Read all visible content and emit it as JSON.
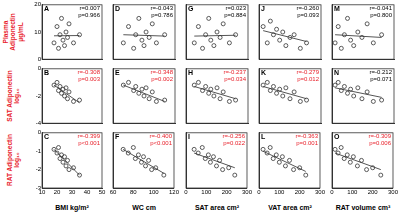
{
  "chart_data": [
    {
      "type": "scatter",
      "title": "A",
      "ylabel": "Plasma Adiponectin μg/mL",
      "x": [
        18,
        20,
        21,
        22,
        23,
        24,
        25,
        26,
        27,
        28,
        31,
        35
      ],
      "y": [
        6,
        12,
        4,
        9,
        15,
        7,
        5,
        10,
        8,
        13,
        6,
        9
      ],
      "fit": {
        "x": [
          18,
          35
        ],
        "y": [
          8.6,
          8.7
        ]
      },
      "annotations": [
        {
          "text": "r=0.007",
          "color": "#000000"
        },
        {
          "text": "p=0.966",
          "color": "#000000"
        }
      ],
      "xlim": [
        10,
        50
      ],
      "xticks": [
        10,
        20,
        30,
        40,
        50
      ],
      "ylim": [
        0,
        20
      ],
      "yticks": [
        0,
        10,
        20
      ],
      "grid": false,
      "tick_labels": "y",
      "marker": "circle",
      "color": "#333333"
    },
    {
      "type": "scatter",
      "title": "B",
      "ylabel": "SAT Adiponectin log₁₀",
      "x": [
        18,
        20,
        21,
        22,
        23,
        24,
        25,
        26,
        27,
        28,
        31,
        35
      ],
      "y": [
        -1.2,
        -1.0,
        -1.6,
        -1.3,
        -1.8,
        -1.5,
        -2.0,
        -1.4,
        -2.2,
        -1.7,
        -2.4,
        -2.3
      ],
      "fit": {
        "x": [
          18,
          35
        ],
        "y": [
          -1.2,
          -2.5
        ]
      },
      "annotations": [
        {
          "text": "r=-0.308",
          "color": "#e8202a"
        },
        {
          "text": "p=0.003",
          "color": "#e8202a"
        }
      ],
      "xlim": [
        10,
        50
      ],
      "xticks": [
        10,
        20,
        30,
        40,
        50
      ],
      "ylim": [
        -4,
        0
      ],
      "yticks": [
        -4,
        -2,
        0
      ],
      "grid": false,
      "tick_labels": "y",
      "marker": "circle",
      "color": "#333333"
    },
    {
      "type": "scatter",
      "title": "C",
      "ylabel": "RAT Adiponectin log₁₀",
      "xlabel": "BMI kg/m²",
      "x": [
        18,
        20,
        21,
        22,
        23,
        24,
        25,
        26,
        27,
        28,
        31,
        35
      ],
      "y": [
        -0.9,
        -1.1,
        -0.8,
        -1.4,
        -1.2,
        -1.6,
        -1.3,
        -1.8,
        -1.5,
        -2.0,
        -1.9,
        -2.3
      ],
      "fit": {
        "x": [
          18,
          35
        ],
        "y": [
          -0.9,
          -2.3
        ]
      },
      "annotations": [
        {
          "text": "r=-0.399",
          "color": "#e8202a"
        },
        {
          "text": "p<0.001",
          "color": "#e8202a"
        }
      ],
      "xlim": [
        10,
        50
      ],
      "xticks": [
        10,
        20,
        30,
        40,
        50
      ],
      "ylim": [
        -3,
        0
      ],
      "yticks": [
        -3,
        -2,
        -1,
        0
      ],
      "grid": false,
      "tick_labels": true,
      "marker": "circle",
      "color": "#333333"
    },
    {
      "type": "scatter",
      "title": "D",
      "x": [
        70,
        75,
        80,
        82,
        85,
        88,
        90,
        92,
        95,
        98,
        102,
        110
      ],
      "y": [
        6,
        12,
        4,
        9,
        15,
        7,
        5,
        10,
        8,
        13,
        6,
        9
      ],
      "fit": {
        "x": [
          70,
          110
        ],
        "y": [
          9,
          8.5
        ]
      },
      "annotations": [
        {
          "text": "r=-0.043",
          "color": "#000000"
        },
        {
          "text": "p=0.786",
          "color": "#000000"
        }
      ],
      "xlim": [
        60,
        120
      ],
      "xticks": [
        60,
        80,
        100,
        120
      ],
      "ylim": [
        0,
        20
      ],
      "yticks": [
        0,
        10,
        20
      ],
      "grid": false,
      "tick_labels": false,
      "marker": "circle",
      "color": "#333333"
    },
    {
      "type": "scatter",
      "title": "E",
      "x": [
        70,
        75,
        80,
        82,
        85,
        88,
        90,
        92,
        95,
        98,
        102,
        110
      ],
      "y": [
        -1.2,
        -1.0,
        -1.6,
        -1.3,
        -1.8,
        -1.5,
        -2.0,
        -1.4,
        -2.2,
        -1.7,
        -2.4,
        -2.3
      ],
      "fit": {
        "x": [
          70,
          110
        ],
        "y": [
          -1.2,
          -2.4
        ]
      },
      "annotations": [
        {
          "text": "r=-0.348",
          "color": "#e8202a"
        },
        {
          "text": "p=0.002",
          "color": "#e8202a"
        }
      ],
      "xlim": [
        60,
        120
      ],
      "xticks": [
        60,
        80,
        100,
        120
      ],
      "ylim": [
        -4,
        0
      ],
      "yticks": [
        -4,
        -2,
        0
      ],
      "grid": false,
      "tick_labels": false,
      "marker": "circle",
      "color": "#333333"
    },
    {
      "type": "scatter",
      "title": "F",
      "xlabel": "WC cm",
      "x": [
        70,
        75,
        80,
        82,
        85,
        88,
        90,
        92,
        95,
        98,
        102,
        110
      ],
      "y": [
        -0.9,
        -1.1,
        -0.8,
        -1.4,
        -1.2,
        -1.6,
        -1.3,
        -1.8,
        -1.5,
        -2.0,
        -1.9,
        -2.3
      ],
      "fit": {
        "x": [
          70,
          110
        ],
        "y": [
          -0.9,
          -2.2
        ]
      },
      "annotations": [
        {
          "text": "r=-0.400",
          "color": "#e8202a"
        },
        {
          "text": "p<0.001",
          "color": "#e8202a"
        }
      ],
      "xlim": [
        60,
        120
      ],
      "xticks": [
        60,
        80,
        100,
        120
      ],
      "ylim": [
        -3,
        0
      ],
      "yticks": [
        -3,
        -2,
        -1,
        0
      ],
      "grid": false,
      "tick_labels": "x",
      "marker": "circle",
      "color": "#333333"
    },
    {
      "type": "scatter",
      "title": "G",
      "x": [
        40,
        60,
        80,
        95,
        110,
        120,
        135,
        150,
        165,
        180,
        210,
        240
      ],
      "y": [
        6,
        12,
        4,
        9,
        15,
        7,
        5,
        10,
        8,
        13,
        6,
        9
      ],
      "fit": {
        "x": [
          40,
          240
        ],
        "y": [
          8.5,
          8.8
        ]
      },
      "annotations": [
        {
          "text": "r=0.023",
          "color": "#000000"
        },
        {
          "text": "p=0.884",
          "color": "#000000"
        }
      ],
      "xlim": [
        0,
        300
      ],
      "xticks": [
        0,
        100,
        200,
        300
      ],
      "ylim": [
        0,
        20
      ],
      "yticks": [
        0,
        10,
        20
      ],
      "grid": false,
      "tick_labels": false,
      "marker": "circle",
      "color": "#333333"
    },
    {
      "type": "scatter",
      "title": "H",
      "x": [
        40,
        60,
        80,
        95,
        110,
        120,
        135,
        150,
        165,
        180,
        210,
        240
      ],
      "y": [
        -1.2,
        -1.0,
        -1.6,
        -1.3,
        -1.8,
        -1.5,
        -2.0,
        -1.4,
        -2.2,
        -1.7,
        -2.4,
        -2.3
      ],
      "fit": {
        "x": [
          40,
          240
        ],
        "y": [
          -1.3,
          -2.2
        ]
      },
      "annotations": [
        {
          "text": "r=-0.237",
          "color": "#e8202a"
        },
        {
          "text": "p=0.034",
          "color": "#e8202a"
        }
      ],
      "xlim": [
        0,
        300
      ],
      "xticks": [
        0,
        100,
        200,
        300
      ],
      "ylim": [
        -4,
        0
      ],
      "yticks": [
        -4,
        -2,
        0
      ],
      "grid": false,
      "tick_labels": false,
      "marker": "circle",
      "color": "#333333"
    },
    {
      "type": "scatter",
      "title": "I",
      "xlabel": "SAT area cm²",
      "x": [
        40,
        60,
        80,
        95,
        110,
        120,
        135,
        150,
        165,
        180,
        210,
        240
      ],
      "y": [
        -0.9,
        -1.1,
        -0.8,
        -1.4,
        -1.2,
        -1.6,
        -1.3,
        -1.8,
        -1.5,
        -2.0,
        -1.9,
        -2.3
      ],
      "fit": {
        "x": [
          40,
          240
        ],
        "y": [
          -1.1,
          -1.9
        ]
      },
      "annotations": [
        {
          "text": "r=-0.256",
          "color": "#e8202a"
        },
        {
          "text": "p=0.022",
          "color": "#e8202a"
        }
      ],
      "xlim": [
        0,
        300
      ],
      "xticks": [
        0,
        100,
        200,
        300
      ],
      "ylim": [
        -3,
        0
      ],
      "yticks": [
        -3,
        -2,
        -1,
        0
      ],
      "grid": false,
      "tick_labels": "x",
      "marker": "circle",
      "color": "#333333"
    },
    {
      "type": "scatter",
      "title": "J",
      "x": [
        20,
        40,
        55,
        70,
        85,
        100,
        115,
        130,
        150,
        170,
        200,
        230
      ],
      "y": [
        12,
        6,
        14,
        9,
        11,
        7,
        10,
        5,
        8,
        9,
        4,
        6
      ],
      "fit": {
        "x": [
          20,
          230
        ],
        "y": [
          10.5,
          6.5
        ]
      },
      "annotations": [
        {
          "text": "r=-0.260",
          "color": "#000000"
        },
        {
          "text": "p=0.093",
          "color": "#000000"
        }
      ],
      "xlim": [
        0,
        300
      ],
      "xticks": [
        0,
        100,
        200,
        300
      ],
      "ylim": [
        0,
        20
      ],
      "yticks": [
        0,
        10,
        20
      ],
      "grid": false,
      "tick_labels": false,
      "marker": "circle",
      "color": "#333333"
    },
    {
      "type": "scatter",
      "title": "K",
      "x": [
        20,
        40,
        55,
        70,
        85,
        100,
        115,
        130,
        150,
        170,
        200,
        230
      ],
      "y": [
        -1.2,
        -1.0,
        -1.6,
        -1.3,
        -1.8,
        -1.5,
        -2.0,
        -1.4,
        -2.2,
        -1.7,
        -2.4,
        -2.3
      ],
      "fit": {
        "x": [
          20,
          230
        ],
        "y": [
          -1.3,
          -2.2
        ]
      },
      "annotations": [
        {
          "text": "r=-0.279",
          "color": "#e8202a"
        },
        {
          "text": "p=0.012",
          "color": "#e8202a"
        }
      ],
      "xlim": [
        0,
        300
      ],
      "xticks": [
        0,
        100,
        200,
        300
      ],
      "ylim": [
        -4,
        0
      ],
      "yticks": [
        -4,
        -2,
        0
      ],
      "grid": false,
      "tick_labels": false,
      "marker": "circle",
      "color": "#333333"
    },
    {
      "type": "scatter",
      "title": "L",
      "xlabel": "VAT area cm²",
      "x": [
        20,
        40,
        55,
        70,
        85,
        100,
        115,
        130,
        150,
        170,
        200,
        230
      ],
      "y": [
        -0.9,
        -1.1,
        -0.8,
        -1.4,
        -1.2,
        -1.6,
        -1.3,
        -1.8,
        -1.5,
        -2.0,
        -1.9,
        -2.3
      ],
      "fit": {
        "x": [
          20,
          230
        ],
        "y": [
          -1.0,
          -2.1
        ]
      },
      "annotations": [
        {
          "text": "r=-0.363",
          "color": "#e8202a"
        },
        {
          "text": "p=0.001",
          "color": "#e8202a"
        }
      ],
      "xlim": [
        0,
        300
      ],
      "xticks": [
        0,
        100,
        200,
        300
      ],
      "ylim": [
        -3,
        0
      ],
      "yticks": [
        -3,
        -2,
        -1,
        0
      ],
      "grid": false,
      "tick_labels": "x",
      "marker": "circle",
      "color": "#333333"
    },
    {
      "type": "scatter",
      "title": "M",
      "x": [
        15,
        30,
        45,
        60,
        75,
        90,
        105,
        125,
        145,
        170,
        200,
        240
      ],
      "y": [
        6,
        12,
        4,
        9,
        15,
        7,
        5,
        10,
        8,
        13,
        6,
        9
      ],
      "fit": {
        "x": [
          15,
          240
        ],
        "y": [
          9,
          8
        ]
      },
      "annotations": [
        {
          "text": "r=-0.041",
          "color": "#000000"
        },
        {
          "text": "p=0.800",
          "color": "#000000"
        }
      ],
      "xlim": [
        0,
        300
      ],
      "xticks": [
        0,
        100,
        200,
        300
      ],
      "ylim": [
        0,
        20
      ],
      "yticks": [
        0,
        10,
        20
      ],
      "grid": false,
      "tick_labels": false,
      "marker": "circle",
      "color": "#333333"
    },
    {
      "type": "scatter",
      "title": "N",
      "x": [
        15,
        30,
        45,
        60,
        75,
        90,
        105,
        125,
        145,
        170,
        200,
        240
      ],
      "y": [
        -1.2,
        -1.0,
        -1.6,
        -1.3,
        -1.8,
        -1.5,
        -2.0,
        -1.4,
        -2.2,
        -1.7,
        -2.4,
        -2.3
      ],
      "fit": {
        "x": [
          15,
          240
        ],
        "y": [
          -1.4,
          -2.1
        ]
      },
      "annotations": [
        {
          "text": "r=-0.212",
          "color": "#000000"
        },
        {
          "text": "p=0.071",
          "color": "#000000"
        }
      ],
      "xlim": [
        0,
        300
      ],
      "xticks": [
        0,
        100,
        200,
        300
      ],
      "ylim": [
        -4,
        0
      ],
      "yticks": [
        -4,
        -2,
        0
      ],
      "grid": false,
      "tick_labels": false,
      "marker": "circle",
      "color": "#333333"
    },
    {
      "type": "scatter",
      "title": "O",
      "xlabel": "RAT volume cm³",
      "x": [
        15,
        30,
        45,
        60,
        75,
        90,
        105,
        125,
        145,
        170,
        200,
        240
      ],
      "y": [
        -0.9,
        -1.1,
        -0.8,
        -1.4,
        -1.2,
        -1.6,
        -1.3,
        -1.8,
        -1.5,
        -2.0,
        -1.9,
        -2.3
      ],
      "fit": {
        "x": [
          15,
          240
        ],
        "y": [
          -1.1,
          -2.0
        ]
      },
      "annotations": [
        {
          "text": "r=-0.309",
          "color": "#e8202a"
        },
        {
          "text": "p=0.006",
          "color": "#e8202a"
        }
      ],
      "xlim": [
        0,
        300
      ],
      "xticks": [
        0,
        100,
        200,
        300
      ],
      "ylim": [
        -3,
        0
      ],
      "yticks": [
        -3,
        -2,
        -1,
        0
      ],
      "grid": false,
      "tick_labels": "x",
      "marker": "circle",
      "color": "#333333"
    }
  ]
}
